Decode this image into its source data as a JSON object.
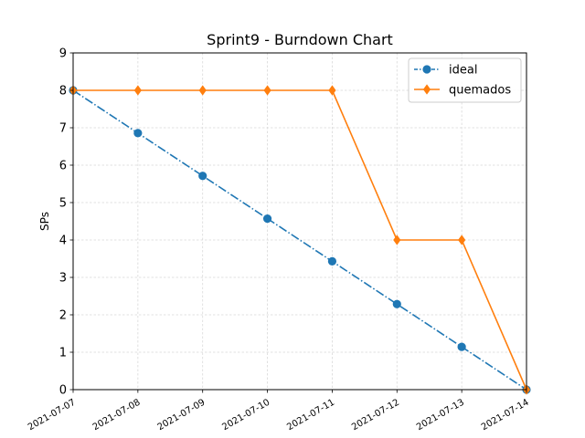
{
  "chart_data": {
    "type": "line",
    "title": "Sprint9 - Burndown Chart",
    "xlabel": "",
    "ylabel": "SPs",
    "x": [
      "2021-07-07",
      "2021-07-08",
      "2021-07-09",
      "2021-07-10",
      "2021-07-11",
      "2021-07-12",
      "2021-07-13",
      "2021-07-14"
    ],
    "ylim": [
      0,
      9
    ],
    "yticks": [
      "0",
      "1",
      "2",
      "3",
      "4",
      "5",
      "6",
      "7",
      "8",
      "9"
    ],
    "grid": true,
    "legend_position": "top-right",
    "series": [
      {
        "name": "ideal",
        "values": [
          8.0,
          6.857,
          5.714,
          4.571,
          3.429,
          2.286,
          1.143,
          0.0
        ],
        "color": "#1f77b4",
        "line_style": "dash-dot",
        "marker": "circle"
      },
      {
        "name": "quemados",
        "values": [
          8,
          8,
          8,
          8,
          8,
          4,
          4,
          0
        ],
        "color": "#ff7f0e",
        "line_style": "solid",
        "marker": "diamond"
      }
    ]
  }
}
